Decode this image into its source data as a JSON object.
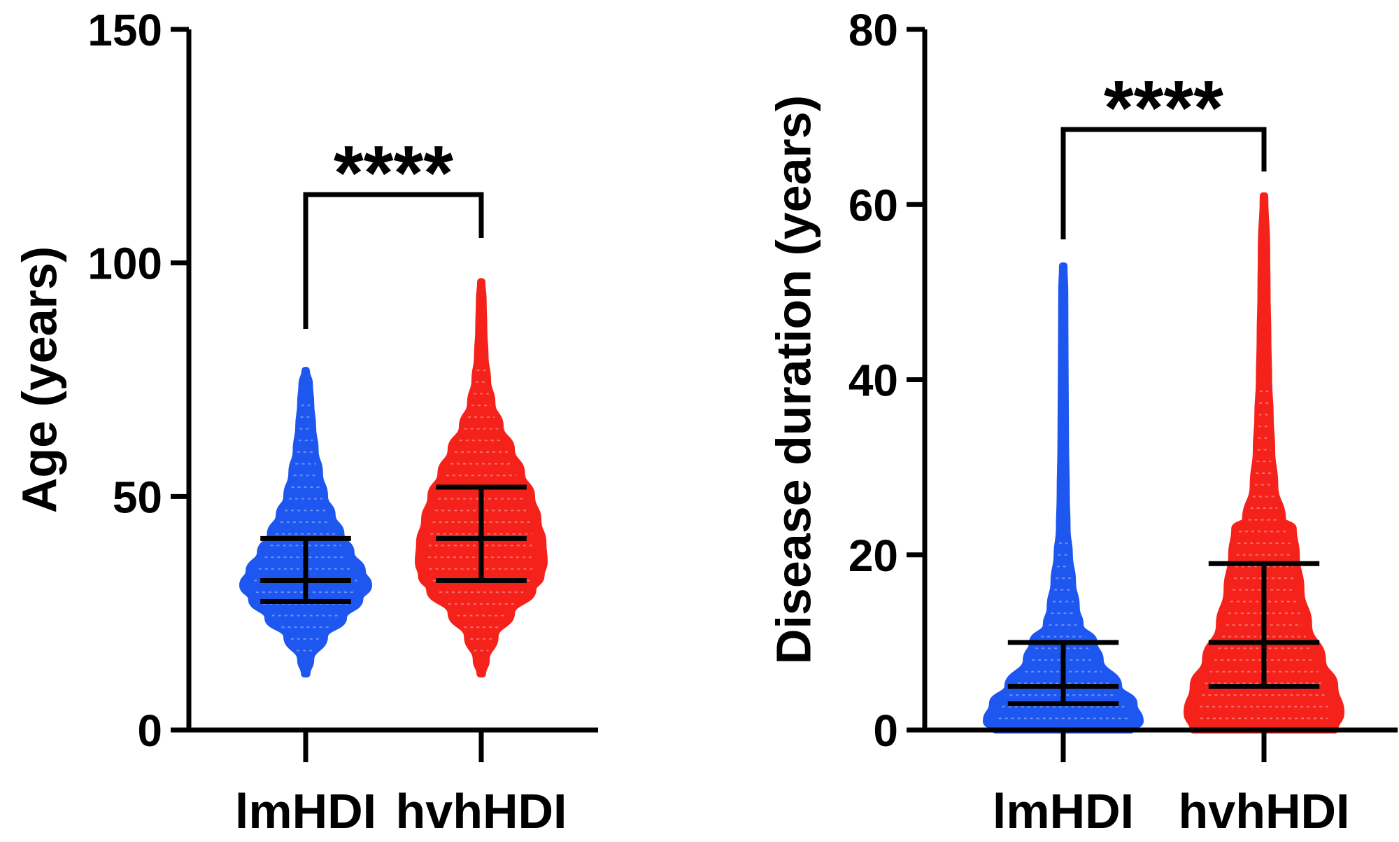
{
  "chart_data": [
    {
      "type": "violin",
      "ylabel": "Age (years)",
      "ylim": [
        0,
        150
      ],
      "yticks": [
        0,
        50,
        100,
        150
      ],
      "categories": [
        "lmHDI",
        "hvhHDI"
      ],
      "colors": [
        "#1E56F0",
        "#F5221B"
      ],
      "significance": {
        "label": "****",
        "between": [
          "lmHDI",
          "hvhHDI"
        ]
      },
      "series": [
        {
          "name": "lmHDI",
          "min": 12,
          "max": 77,
          "q1": 27.5,
          "median": 32,
          "q3": 41,
          "density": [
            [
              12,
              0.02
            ],
            [
              15,
              0.08
            ],
            [
              20,
              0.3
            ],
            [
              24,
              0.6
            ],
            [
              28,
              0.86
            ],
            [
              31,
              1.0
            ],
            [
              34,
              0.9
            ],
            [
              38,
              0.72
            ],
            [
              42,
              0.56
            ],
            [
              46,
              0.42
            ],
            [
              50,
              0.3
            ],
            [
              55,
              0.22
            ],
            [
              60,
              0.15
            ],
            [
              65,
              0.11
            ],
            [
              70,
              0.08
            ],
            [
              74,
              0.06
            ],
            [
              77,
              0.01
            ]
          ]
        },
        {
          "name": "hvhHDI",
          "min": 12,
          "max": 96,
          "q1": 32,
          "median": 41,
          "q3": 52,
          "density": [
            [
              12,
              0.02
            ],
            [
              15,
              0.08
            ],
            [
              20,
              0.22
            ],
            [
              25,
              0.48
            ],
            [
              30,
              0.82
            ],
            [
              33,
              0.95
            ],
            [
              36,
              1.0
            ],
            [
              40,
              0.98
            ],
            [
              45,
              0.9
            ],
            [
              50,
              0.8
            ],
            [
              55,
              0.64
            ],
            [
              60,
              0.48
            ],
            [
              65,
              0.3
            ],
            [
              70,
              0.17
            ],
            [
              75,
              0.1
            ],
            [
              80,
              0.06
            ],
            [
              86,
              0.04
            ],
            [
              92,
              0.03
            ],
            [
              96,
              0.01
            ]
          ]
        }
      ]
    },
    {
      "type": "violin",
      "ylabel": "Disease duration (years)",
      "ylim": [
        0,
        80
      ],
      "yticks": [
        0,
        20,
        40,
        60,
        80
      ],
      "categories": [
        "lmHDI",
        "hvhHDI"
      ],
      "colors": [
        "#1E56F0",
        "#F5221B"
      ],
      "significance": {
        "label": "****",
        "between": [
          "lmHDI",
          "hvhHDI"
        ]
      },
      "series": [
        {
          "name": "lmHDI",
          "min": 0,
          "max": 53,
          "q1": 3,
          "median": 5,
          "q3": 10,
          "density": [
            [
              0,
              0.88
            ],
            [
              1,
              1.0
            ],
            [
              3,
              0.92
            ],
            [
              5,
              0.72
            ],
            [
              8,
              0.48
            ],
            [
              10,
              0.4
            ],
            [
              12,
              0.22
            ],
            [
              14,
              0.17
            ],
            [
              17,
              0.12
            ],
            [
              20,
              0.08
            ],
            [
              23,
              0.05
            ],
            [
              27,
              0.04
            ],
            [
              33,
              0.03
            ],
            [
              40,
              0.025
            ],
            [
              45,
              0.022
            ],
            [
              50,
              0.02
            ],
            [
              53,
              0.01
            ]
          ]
        },
        {
          "name": "hvhHDI",
          "min": 0,
          "max": 61,
          "q1": 5,
          "median": 10,
          "q3": 19,
          "density": [
            [
              0,
              0.92
            ],
            [
              2,
              1.0
            ],
            [
              5,
              0.92
            ],
            [
              8,
              0.76
            ],
            [
              12,
              0.58
            ],
            [
              16,
              0.48
            ],
            [
              20,
              0.42
            ],
            [
              23,
              0.38
            ],
            [
              24,
              0.24
            ],
            [
              28,
              0.14
            ],
            [
              32,
              0.1
            ],
            [
              36,
              0.08
            ],
            [
              40,
              0.06
            ],
            [
              45,
              0.05
            ],
            [
              50,
              0.04
            ],
            [
              55,
              0.035
            ],
            [
              61,
              0.01
            ]
          ]
        }
      ]
    }
  ]
}
